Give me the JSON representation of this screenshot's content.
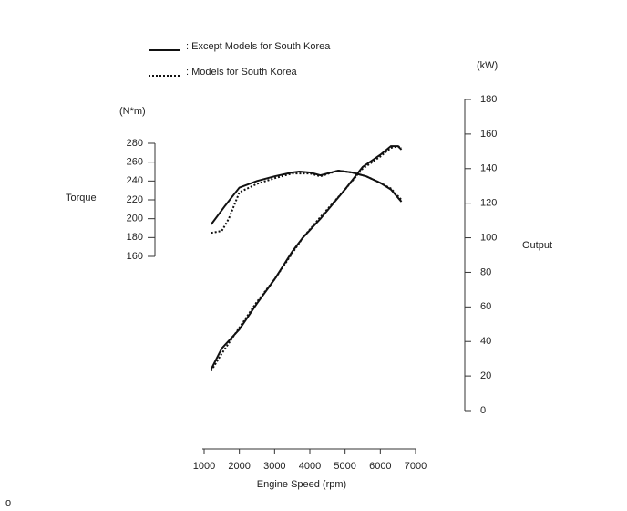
{
  "chart_data": {
    "type": "line",
    "legend": [
      {
        "label": ": Except Models for South Korea",
        "style": "solid"
      },
      {
        "label": ": Models for South Korea",
        "style": "dotted"
      }
    ],
    "xlabel": "Engine Speed (rpm)",
    "ylabel": "Torque",
    "yunit": "(N*m)",
    "y2label": "Output",
    "y2unit": "(kW)",
    "note": "o",
    "xlim": [
      1000,
      7000
    ],
    "xticks": [
      1000,
      2000,
      3000,
      4000,
      5000,
      6000,
      7000
    ],
    "ylim": [
      160,
      280
    ],
    "yticks": [
      160,
      180,
      200,
      220,
      240,
      260,
      280
    ],
    "y2lim": [
      0,
      180
    ],
    "y2ticks": [
      0,
      20,
      40,
      60,
      80,
      100,
      120,
      140,
      160,
      180
    ],
    "color": "#111111",
    "series": [
      {
        "style": "solid",
        "axis": "y",
        "x": [
          1200,
          1600,
          2000,
          2500,
          3000,
          3500,
          3700,
          4000,
          4300,
          4800,
          5200,
          5600,
          6000,
          6300,
          6600
        ],
        "values": [
          194,
          214,
          233,
          240,
          245,
          249,
          250,
          249,
          246,
          251,
          249,
          245,
          238,
          231,
          218
        ]
      },
      {
        "style": "dotted",
        "axis": "y",
        "x": [
          1200,
          1500,
          1700,
          2000,
          2500,
          3000,
          3500,
          4000,
          4300,
          4800,
          5200,
          5600,
          6000,
          6300,
          6600
        ],
        "values": [
          185,
          187,
          200,
          228,
          237,
          243,
          248,
          248,
          245,
          251,
          249,
          245,
          238,
          232,
          220
        ]
      },
      {
        "style": "solid",
        "axis": "y2",
        "x": [
          1200,
          1500,
          2000,
          2500,
          3000,
          3500,
          3800,
          4300,
          5000,
          5500,
          6000,
          6300,
          6500,
          6600
        ],
        "values": [
          24,
          36,
          47,
          62,
          76,
          92,
          100,
          111,
          128,
          141,
          148,
          153,
          153,
          151
        ]
      },
      {
        "style": "dotted",
        "axis": "y2",
        "x": [
          1200,
          1500,
          2000,
          2500,
          3000,
          3500,
          3800,
          4300,
          5000,
          5500,
          6000,
          6300,
          6500,
          6600
        ],
        "values": [
          23,
          33,
          48,
          63,
          76,
          91,
          100,
          112,
          128,
          140,
          147,
          152,
          153,
          152
        ]
      }
    ]
  }
}
